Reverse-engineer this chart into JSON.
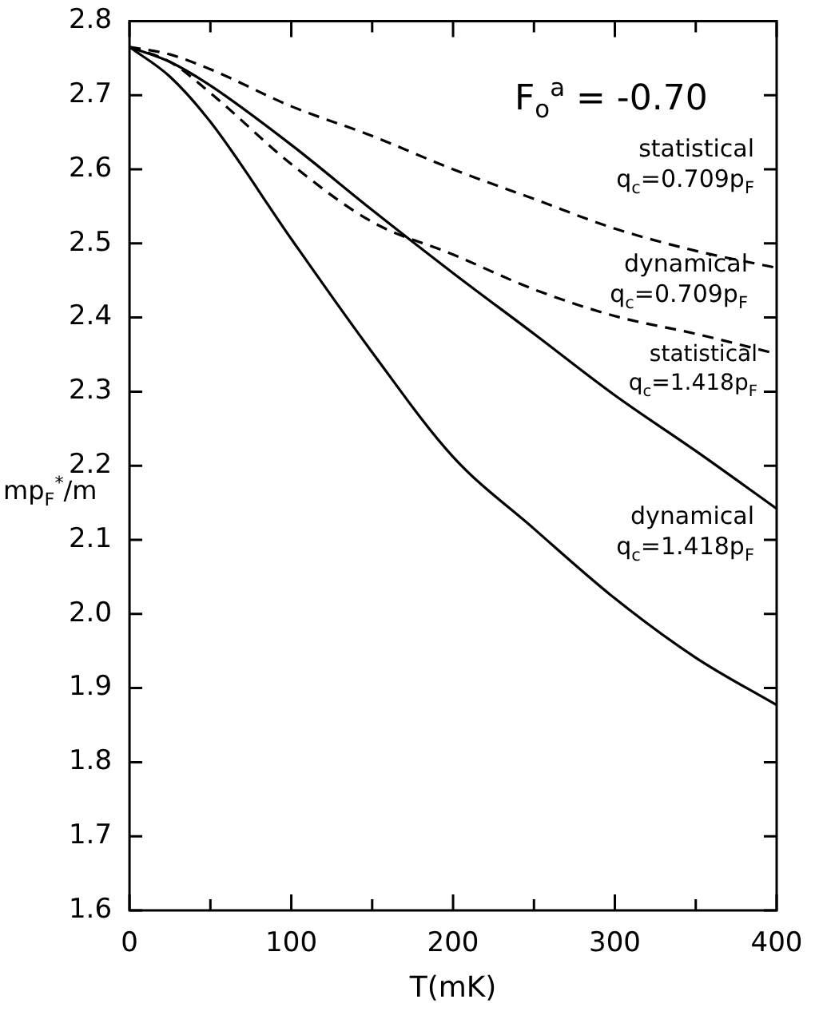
{
  "chart_data": {
    "type": "line",
    "xlabel": "T(mK)",
    "ylabel": "mp$_{F}$$^{*}$/m",
    "xlim": [
      0,
      400
    ],
    "ylim": [
      1.6,
      2.8
    ],
    "xticks": [
      0,
      {
        "value": 50,
        "label": null
      },
      100,
      {
        "value": 150,
        "label": null
      },
      200,
      {
        "value": 250,
        "label": null
      },
      300,
      {
        "value": 350,
        "label": null
      },
      400
    ],
    "yticks": [
      1.6,
      1.7,
      1.8,
      1.9,
      {
        "value": 2.0,
        "label": "2.0"
      },
      2.1,
      2.2,
      2.3,
      2.4,
      2.5,
      2.6,
      2.7,
      2.8
    ],
    "grid": false,
    "legend": false,
    "marker": "none",
    "annotations": [
      "F$_{o}$$^{a}$ = -0.70",
      "statistical q$_{c}$=0.709p$_{F}$",
      "dynamical q$_{c}$=0.709p$_{F}$",
      "statistical q$_{c}$=1.418p$_{F}$",
      "dynamical q$_{c}$=1.418p$_{F}$"
    ],
    "x": [
      0,
      25,
      50,
      100,
      150,
      200,
      250,
      300,
      350,
      400
    ],
    "series": [
      {
        "color": "#000000",
        "line_style": "dashed",
        "values": [
          2.765,
          2.755,
          2.735,
          2.685,
          2.645,
          2.6,
          2.56,
          2.52,
          2.49,
          2.467
        ]
      },
      {
        "color": "#000000",
        "line_style": "dashed",
        "values": [
          2.765,
          2.745,
          2.703,
          2.607,
          2.529,
          2.485,
          2.438,
          2.402,
          2.378,
          2.351
        ]
      },
      {
        "color": "#000000",
        "line_style": "solid",
        "values": [
          2.765,
          2.745,
          2.713,
          2.633,
          2.545,
          2.46,
          2.378,
          2.295,
          2.22,
          2.142
        ]
      },
      {
        "color": "#000000",
        "line_style": "solid",
        "values": [
          2.765,
          2.725,
          2.664,
          2.506,
          2.353,
          2.212,
          2.115,
          2.021,
          1.941,
          1.877
        ]
      }
    ]
  }
}
